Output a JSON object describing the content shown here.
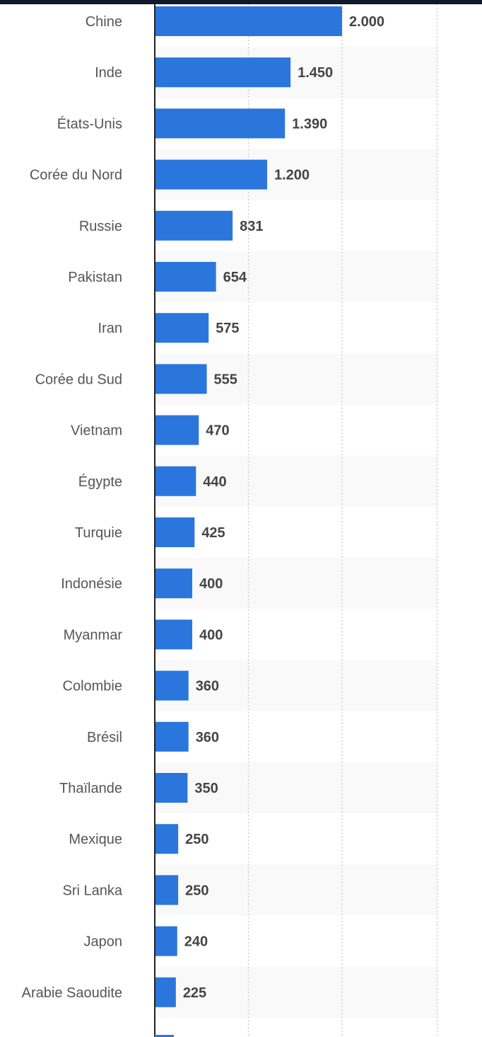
{
  "chart_data": {
    "type": "bar",
    "orientation": "horizontal",
    "categories": [
      "Chine",
      "Inde",
      "États-Unis",
      "Corée du Nord",
      "Russie",
      "Pakistan",
      "Iran",
      "Corée du Sud",
      "Vietnam",
      "Égypte",
      "Turquie",
      "Indonésie",
      "Myanmar",
      "Colombie",
      "Brésil",
      "Thaïlande",
      "Mexique",
      "Sri Lanka",
      "Japon",
      "Arabie Saoudite"
    ],
    "values": [
      2000,
      1450,
      1390,
      1200,
      831,
      654,
      575,
      555,
      470,
      440,
      425,
      400,
      400,
      360,
      360,
      350,
      250,
      250,
      240,
      225
    ],
    "value_labels": [
      "2.000",
      "1.450",
      "1.390",
      "1.200",
      "831",
      "654",
      "575",
      "555",
      "470",
      "440",
      "425",
      "400",
      "400",
      "360",
      "360",
      "350",
      "250",
      "250",
      "240",
      "225"
    ],
    "xlim": [
      0,
      3000
    ],
    "grid": true,
    "bar_color": "#2a76dd",
    "stripe_color": "#f9f9f9",
    "title": "",
    "xlabel": "",
    "ylabel": ""
  }
}
